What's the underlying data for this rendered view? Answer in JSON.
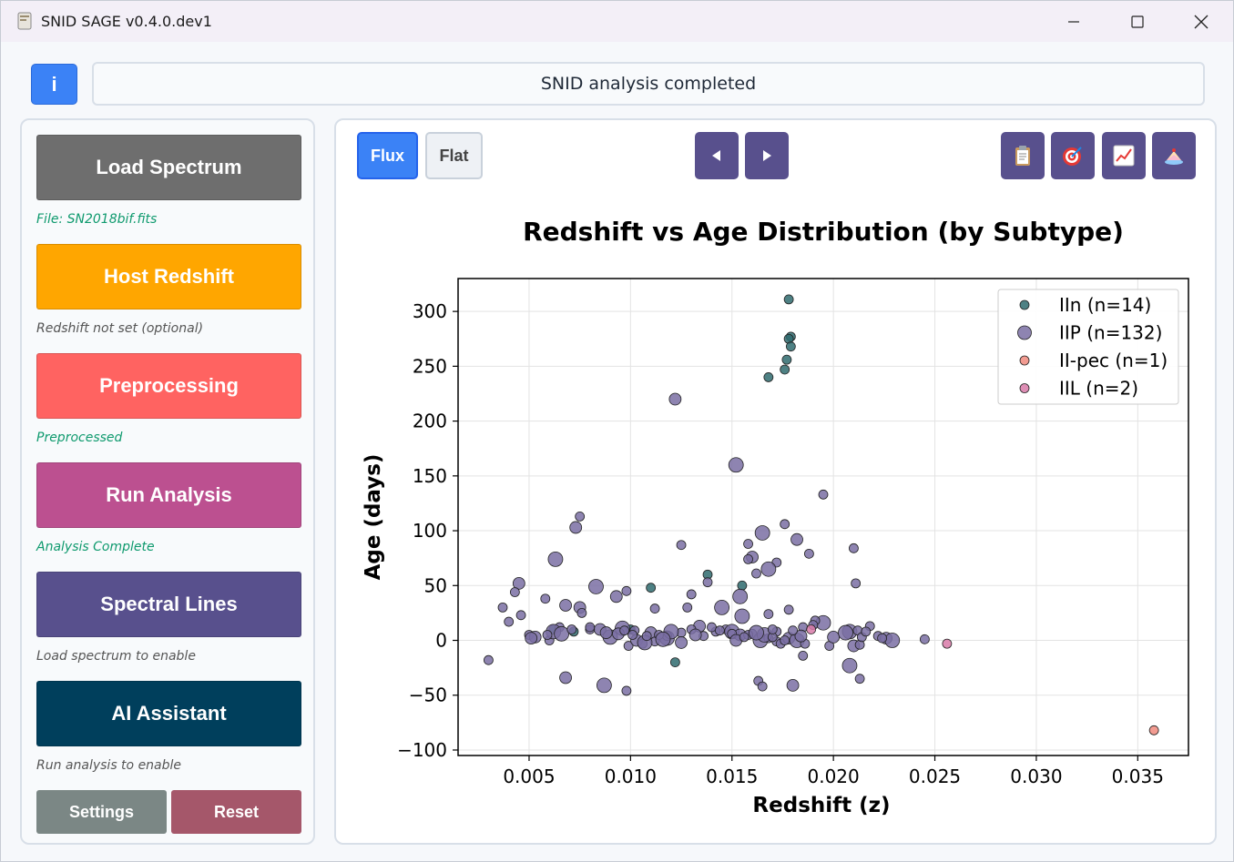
{
  "window": {
    "title": "SNID SAGE v0.4.0.dev1"
  },
  "header": {
    "info_label": "i",
    "status": "SNID analysis completed"
  },
  "sidebar": {
    "load": {
      "label": "Load Spectrum",
      "status": "File: SN2018bif.fits",
      "color": "#6e6e6e",
      "status_color": "#0f9a6e"
    },
    "redshift": {
      "label": "Host Redshift",
      "status": "Redshift not set (optional)",
      "color": "#ffa600",
      "status_color": "#555"
    },
    "preprocess": {
      "label": "Preprocessing",
      "status": "Preprocessed",
      "color": "#ff6361",
      "status_color": "#0f9a6e"
    },
    "analysis": {
      "label": "Run Analysis",
      "status": "Analysis Complete",
      "color": "#bc5090",
      "status_color": "#0f9a6e"
    },
    "lines": {
      "label": "Spectral Lines",
      "status": "Load spectrum to enable",
      "color": "#58508d",
      "status_color": "#555"
    },
    "ai": {
      "label": "AI Assistant",
      "status": "Run analysis to enable",
      "color": "#003f5c",
      "status_color": "#555"
    },
    "settings_label": "Settings",
    "reset_label": "Reset"
  },
  "toolbar": {
    "flux_label": "Flux",
    "flat_label": "Flat",
    "prev_icon": "triangle-left-icon",
    "next_icon": "triangle-right-icon",
    "tools": [
      "clipboard-icon",
      "target-icon",
      "chart-increasing-icon",
      "cake-icon"
    ]
  },
  "chart_data": {
    "type": "scatter",
    "title": "Redshift vs Age Distribution (by Subtype)",
    "xlabel": "Redshift (z)",
    "ylabel": "Age (days)",
    "xlim": [
      0.0015,
      0.0375
    ],
    "ylim": [
      -105,
      330
    ],
    "xticks": [
      "0.005",
      "0.010",
      "0.015",
      "0.020",
      "0.025",
      "0.030",
      "0.035"
    ],
    "xtick_values": [
      0.005,
      0.01,
      0.015,
      0.02,
      0.025,
      0.03,
      0.035
    ],
    "yticks": [
      "−100",
      "−50",
      "0",
      "50",
      "100",
      "150",
      "200",
      "250",
      "300"
    ],
    "ytick_values": [
      -100,
      -50,
      0,
      50,
      100,
      150,
      200,
      250,
      300
    ],
    "grid": true,
    "legend_position": "top-right",
    "series": [
      {
        "name": "IIn (n=14)",
        "color": "#2f6b6e",
        "size": "small",
        "points": [
          [
            0.0178,
            311
          ],
          [
            0.0179,
            277
          ],
          [
            0.0178,
            275
          ],
          [
            0.0179,
            268
          ],
          [
            0.0177,
            256
          ],
          [
            0.0176,
            247
          ],
          [
            0.0168,
            240
          ],
          [
            0.0138,
            60
          ],
          [
            0.0155,
            50
          ],
          [
            0.011,
            48
          ],
          [
            0.0062,
            10
          ],
          [
            0.0072,
            8
          ],
          [
            0.0122,
            -20
          ],
          [
            0.01,
            10
          ]
        ]
      },
      {
        "name": "IIP (n=132)",
        "color": "#7a6ea3",
        "size": "mixed",
        "points": [
          [
            0.0122,
            220
          ],
          [
            0.0152,
            160
          ],
          [
            0.0195,
            133
          ],
          [
            0.0075,
            113
          ],
          [
            0.0073,
            103
          ],
          [
            0.0176,
            106
          ],
          [
            0.0165,
            98
          ],
          [
            0.0158,
            88
          ],
          [
            0.0182,
            92
          ],
          [
            0.0125,
            87
          ],
          [
            0.021,
            84
          ],
          [
            0.0063,
            74
          ],
          [
            0.016,
            76
          ],
          [
            0.0158,
            74
          ],
          [
            0.0188,
            79
          ],
          [
            0.0172,
            71
          ],
          [
            0.0168,
            65
          ],
          [
            0.0162,
            61
          ],
          [
            0.0138,
            53
          ],
          [
            0.0211,
            52
          ],
          [
            0.0045,
            52
          ],
          [
            0.0083,
            49
          ],
          [
            0.0098,
            45
          ],
          [
            0.0043,
            44
          ],
          [
            0.0093,
            40
          ],
          [
            0.013,
            42
          ],
          [
            0.0154,
            40
          ],
          [
            0.0058,
            38
          ],
          [
            0.0068,
            32
          ],
          [
            0.0037,
            30
          ],
          [
            0.0128,
            30
          ],
          [
            0.0145,
            30
          ],
          [
            0.0075,
            30
          ],
          [
            0.0112,
            29
          ],
          [
            0.0168,
            24
          ],
          [
            0.0046,
            23
          ],
          [
            0.0155,
            22
          ],
          [
            0.0178,
            28
          ],
          [
            0.004,
            17
          ],
          [
            0.0076,
            25
          ],
          [
            0.0134,
            13
          ],
          [
            0.0195,
            16
          ],
          [
            0.0191,
            18
          ],
          [
            0.0065,
            12
          ],
          [
            0.0085,
            10
          ],
          [
            0.008,
            10
          ],
          [
            0.0096,
            11
          ],
          [
            0.0102,
            9
          ],
          [
            0.011,
            7
          ],
          [
            0.0125,
            7
          ],
          [
            0.0147,
            10
          ],
          [
            0.015,
            8
          ],
          [
            0.0154,
            5
          ],
          [
            0.016,
            6
          ],
          [
            0.0172,
            8
          ],
          [
            0.0185,
            12
          ],
          [
            0.0208,
            8
          ],
          [
            0.0212,
            9
          ],
          [
            0.0218,
            13
          ],
          [
            0.0222,
            4
          ],
          [
            0.0226,
            2
          ],
          [
            0.0229,
            0
          ],
          [
            0.0245,
            1
          ],
          [
            0.005,
            5
          ],
          [
            0.0053,
            3
          ],
          [
            0.006,
            0
          ],
          [
            0.009,
            3
          ],
          [
            0.0099,
            -5
          ],
          [
            0.0103,
            0
          ],
          [
            0.0106,
            -3
          ],
          [
            0.0112,
            -1
          ],
          [
            0.0118,
            2
          ],
          [
            0.0125,
            -2
          ],
          [
            0.0136,
            4
          ],
          [
            0.015,
            6
          ],
          [
            0.0158,
            5
          ],
          [
            0.0164,
            0
          ],
          [
            0.0168,
            2
          ],
          [
            0.0172,
            -1
          ],
          [
            0.0174,
            -3
          ],
          [
            0.0178,
            2
          ],
          [
            0.0182,
            0
          ],
          [
            0.0186,
            -3
          ],
          [
            0.0198,
            -5
          ],
          [
            0.021,
            -5
          ],
          [
            0.0213,
            -4
          ],
          [
            0.0208,
            -23
          ],
          [
            0.0213,
            -35
          ],
          [
            0.018,
            -41
          ],
          [
            0.0185,
            -14
          ],
          [
            0.0098,
            -46
          ],
          [
            0.0087,
            -41
          ],
          [
            0.0068,
            -34
          ],
          [
            0.003,
            -18
          ],
          [
            0.0163,
            -37
          ],
          [
            0.0165,
            -42
          ],
          [
            0.0107,
            -2
          ],
          [
            0.0118,
            4
          ],
          [
            0.013,
            10
          ],
          [
            0.0142,
            8
          ],
          [
            0.0152,
            0
          ],
          [
            0.0166,
            5
          ],
          [
            0.017,
            3
          ],
          [
            0.0176,
            0
          ],
          [
            0.0184,
            4
          ],
          [
            0.0214,
            3
          ],
          [
            0.0062,
            8
          ],
          [
            0.008,
            12
          ],
          [
            0.0094,
            6
          ],
          [
            0.0108,
            4
          ],
          [
            0.0114,
            5
          ],
          [
            0.012,
            8
          ],
          [
            0.0132,
            5
          ],
          [
            0.014,
            12
          ],
          [
            0.0144,
            9
          ],
          [
            0.0156,
            3
          ],
          [
            0.0162,
            7
          ],
          [
            0.017,
            10
          ],
          [
            0.018,
            9
          ],
          [
            0.019,
            14
          ],
          [
            0.02,
            3
          ],
          [
            0.0206,
            7
          ],
          [
            0.0216,
            8
          ],
          [
            0.0224,
            2
          ],
          [
            0.0051,
            2
          ],
          [
            0.0059,
            5
          ],
          [
            0.0066,
            6
          ],
          [
            0.0071,
            10
          ],
          [
            0.0088,
            7
          ],
          [
            0.0097,
            9
          ],
          [
            0.0101,
            5
          ],
          [
            0.0116,
            1
          ]
        ]
      },
      {
        "name": "II-pec (n=1)",
        "color": "#f08a7e",
        "size": "small",
        "points": [
          [
            0.0358,
            -82
          ]
        ]
      },
      {
        "name": "IIL (n=2)",
        "color": "#d87aa8",
        "size": "small",
        "points": [
          [
            0.0256,
            -3
          ],
          [
            0.0189,
            10
          ]
        ]
      }
    ]
  }
}
